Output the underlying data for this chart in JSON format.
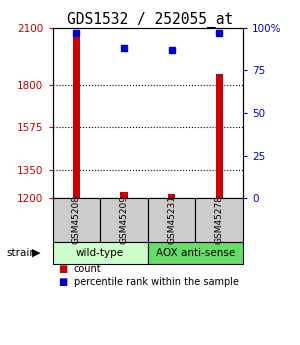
{
  "title": "GDS1532 / 252055_at",
  "samples": [
    "GSM45208",
    "GSM45209",
    "GSM45231",
    "GSM45278"
  ],
  "counts": [
    2055,
    1232,
    1222,
    1855
  ],
  "percentiles": [
    97,
    88,
    87,
    97
  ],
  "ylim_left": [
    1200,
    2100
  ],
  "ylim_right": [
    0,
    100
  ],
  "left_ticks": [
    1200,
    1350,
    1575,
    1800,
    2100
  ],
  "right_ticks": [
    0,
    25,
    50,
    75,
    100
  ],
  "right_tick_labels": [
    "0",
    "25",
    "50",
    "75",
    "100%"
  ],
  "hlines": [
    1350,
    1575,
    1800
  ],
  "groups": [
    {
      "label": "wild-type",
      "indices": [
        0,
        1
      ],
      "color": "#ccffcc"
    },
    {
      "label": "AOX anti-sense",
      "indices": [
        2,
        3
      ],
      "color": "#66dd66"
    }
  ],
  "bar_color": "#cc0000",
  "dot_color": "#0000cc",
  "bar_width": 0.15,
  "x_positions": [
    1,
    2,
    3,
    4
  ],
  "background_color": "#ffffff",
  "plot_bg": "#ffffff",
  "label_box_color": "#cccccc",
  "strain_label": "strain",
  "legend_count_label": "count",
  "legend_percentile_label": "percentile rank within the sample"
}
